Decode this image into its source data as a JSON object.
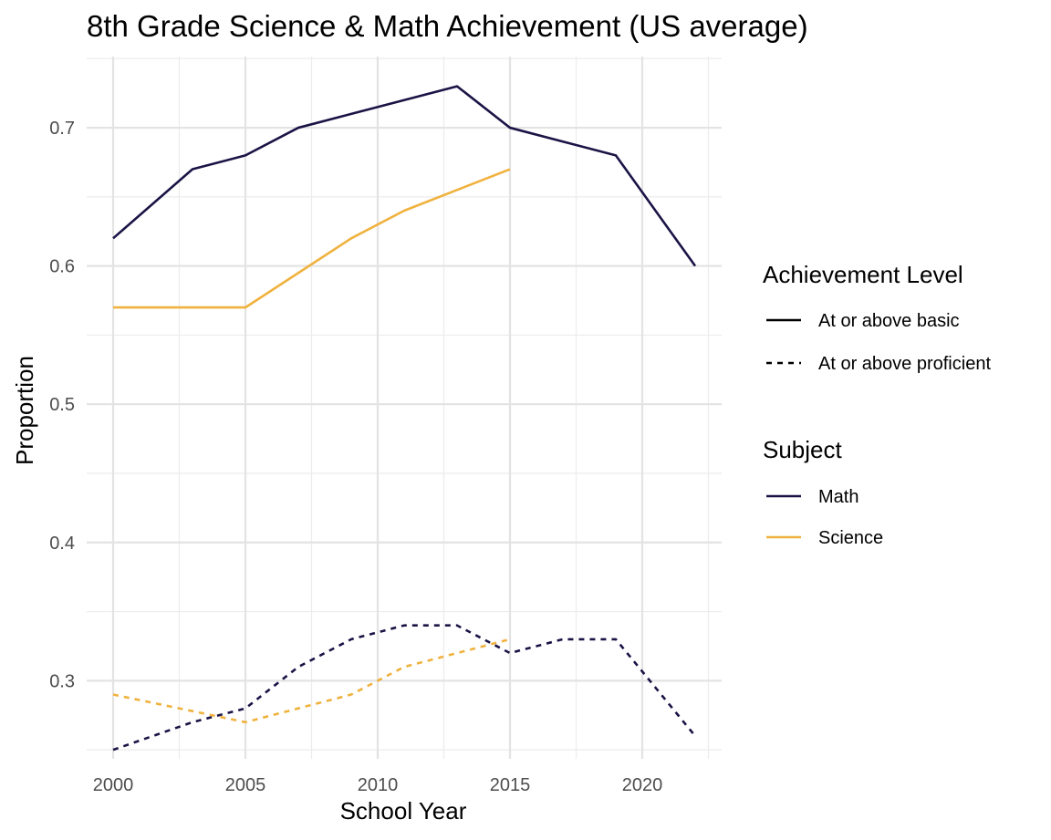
{
  "chart_data": {
    "type": "line",
    "title": "8th Grade Science & Math Achievement (US average)",
    "xlabel": "School Year",
    "ylabel": "Proportion",
    "xlim": [
      1999.0,
      2023.0
    ],
    "ylim": [
      0.2435,
      0.7515
    ],
    "x_ticks": [
      2000,
      2005,
      2010,
      2015,
      2020
    ],
    "y_ticks": [
      0.3,
      0.4,
      0.5,
      0.6,
      0.7
    ],
    "y_tick_labels": [
      "0.3",
      "0.4",
      "0.5",
      "0.6",
      "0.7"
    ],
    "grid": true,
    "legend_position": "right",
    "legends": [
      {
        "title": "Achievement Level",
        "entries": [
          {
            "label": "At or above basic",
            "linetype": "solid"
          },
          {
            "label": "At or above proficient",
            "linetype": "dashed"
          }
        ]
      },
      {
        "title": "Subject",
        "entries": [
          {
            "label": "Math",
            "color": "#1a1446"
          },
          {
            "label": "Science",
            "color": "#f0b23e"
          }
        ]
      }
    ],
    "series": [
      {
        "subject": "Math",
        "level": "At or above basic",
        "color": "#1a1446",
        "linetype": "solid",
        "x": [
          2000,
          2003,
          2005,
          2007,
          2009,
          2011,
          2013,
          2015,
          2017,
          2019,
          2022
        ],
        "y": [
          0.62,
          0.67,
          0.68,
          0.7,
          0.71,
          0.72,
          0.73,
          0.7,
          0.69,
          0.68,
          0.6
        ]
      },
      {
        "subject": "Science",
        "level": "At or above basic",
        "color": "#f0b23e",
        "linetype": "solid",
        "x": [
          2000,
          2005,
          2009,
          2011,
          2015
        ],
        "y": [
          0.57,
          0.57,
          0.62,
          0.64,
          0.67
        ]
      },
      {
        "subject": "Math",
        "level": "At or above proficient",
        "color": "#1a1446",
        "linetype": "dashed",
        "x": [
          2000,
          2003,
          2005,
          2007,
          2009,
          2011,
          2013,
          2015,
          2017,
          2019,
          2022
        ],
        "y": [
          0.25,
          0.27,
          0.28,
          0.31,
          0.33,
          0.34,
          0.34,
          0.32,
          0.33,
          0.33,
          0.26
        ]
      },
      {
        "subject": "Science",
        "level": "At or above proficient",
        "color": "#f0b23e",
        "linetype": "dashed",
        "x": [
          2000,
          2005,
          2009,
          2011,
          2015
        ],
        "y": [
          0.29,
          0.27,
          0.29,
          0.31,
          0.33
        ]
      }
    ]
  }
}
